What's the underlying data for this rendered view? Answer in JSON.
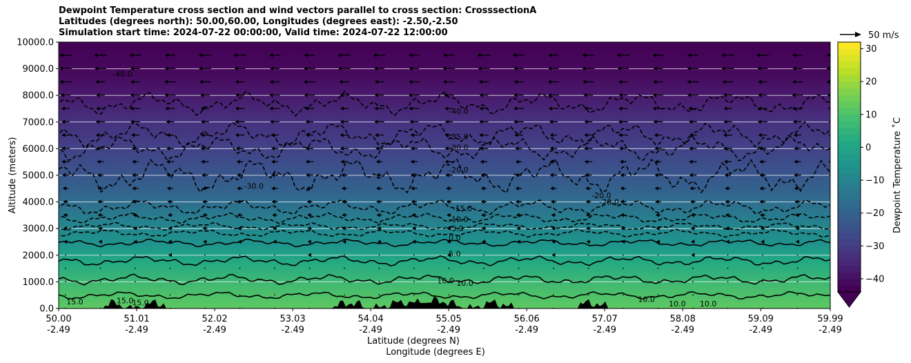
{
  "chart_data": {
    "type": "heatmap",
    "title_lines": [
      "Dewpoint Temperature cross section and wind vectors parallel to cross section: CrosssectionA",
      "Latitudes (degrees north): 50.00,60.00, Longitudes (degrees east): -2.50,-2.50",
      "Simulation start time: 2024-07-22 00:00:00, Valid time: 2024-07-22 12:00:00"
    ],
    "ylabel": "Altitude (meters)",
    "xlabel": "Latitude (degrees N)",
    "xlabel2": "Longitude (degrees E)",
    "ylim": [
      0,
      10000
    ],
    "xlim": [
      50.0,
      59.99
    ],
    "y_ticks": [
      "0.0",
      "1000.0",
      "2000.0",
      "3000.0",
      "4000.0",
      "5000.0",
      "6000.0",
      "7000.0",
      "8000.0",
      "9000.0",
      "10000.0"
    ],
    "y_tick_values": [
      0,
      1000,
      2000,
      3000,
      4000,
      5000,
      6000,
      7000,
      8000,
      9000,
      10000
    ],
    "x_ticks_lat": [
      "50.00",
      "51.01",
      "52.02",
      "53.03",
      "54.04",
      "55.05",
      "56.06",
      "57.07",
      "58.08",
      "59.09",
      "59.99"
    ],
    "x_ticks_lon": [
      "-2.49",
      "-2.49",
      "-2.49",
      "-2.49",
      "-2.49",
      "-2.49",
      "-2.49",
      "-2.49",
      "-2.49",
      "-2.49",
      "-2.49"
    ],
    "x_tick_values": [
      50.0,
      51.01,
      52.02,
      53.03,
      54.04,
      55.05,
      56.06,
      57.07,
      58.08,
      59.09,
      59.99
    ],
    "grid": "horizontal",
    "colorbar": {
      "label": "Dewpoint Temperature ˚C",
      "range": [
        -44,
        32
      ],
      "ticks": [
        "−40",
        "−30",
        "−20",
        "−10",
        "0",
        "10",
        "20",
        "30"
      ],
      "tick_values": [
        -40,
        -30,
        -20,
        -10,
        0,
        10,
        20,
        30
      ],
      "colormap": "viridis",
      "extend": "min"
    },
    "quiver_key": "50 m/s",
    "colormap_stops": [
      "#440154",
      "#482475",
      "#414487",
      "#355f8d",
      "#2a788e",
      "#21918c",
      "#22a884",
      "#44bf70",
      "#7ad151",
      "#bddf26",
      "#fde725"
    ],
    "contour_labels": [
      {
        "text": "-40.0",
        "x": 55.05,
        "y": 7300
      },
      {
        "text": "-40.0",
        "x": 50.7,
        "y": 8700
      },
      {
        "text": "-35.0",
        "x": 55.05,
        "y": 6350
      },
      {
        "text": "-30.0",
        "x": 55.05,
        "y": 5950
      },
      {
        "text": "-30.0",
        "x": 52.4,
        "y": 4500
      },
      {
        "text": "-20.0",
        "x": 55.05,
        "y": 5100
      },
      {
        "text": "-20.0",
        "x": 56.9,
        "y": 4150
      },
      {
        "text": "-20.0",
        "x": 57.0,
        "y": 3900
      },
      {
        "text": "-15.0",
        "x": 55.1,
        "y": 3650
      },
      {
        "text": "-10.0",
        "x": 55.05,
        "y": 3250
      },
      {
        "text": "-5.0",
        "x": 55.05,
        "y": 2900
      },
      {
        "text": "0.0",
        "x": 55.05,
        "y": 2550
      },
      {
        "text": "5.0",
        "x": 55.05,
        "y": 1950
      },
      {
        "text": "10.0",
        "x": 54.9,
        "y": 950
      },
      {
        "text": "10.0",
        "x": 55.15,
        "y": 850
      },
      {
        "text": "10.0",
        "x": 57.5,
        "y": 250
      },
      {
        "text": "10.0",
        "x": 57.9,
        "y": 80
      },
      {
        "text": "10.0",
        "x": 58.3,
        "y": 80
      },
      {
        "text": "15.0",
        "x": 50.1,
        "y": 150
      },
      {
        "text": "15.0",
        "x": 50.75,
        "y": 200
      },
      {
        "text": "15.0",
        "x": 50.95,
        "y": 120
      }
    ]
  }
}
